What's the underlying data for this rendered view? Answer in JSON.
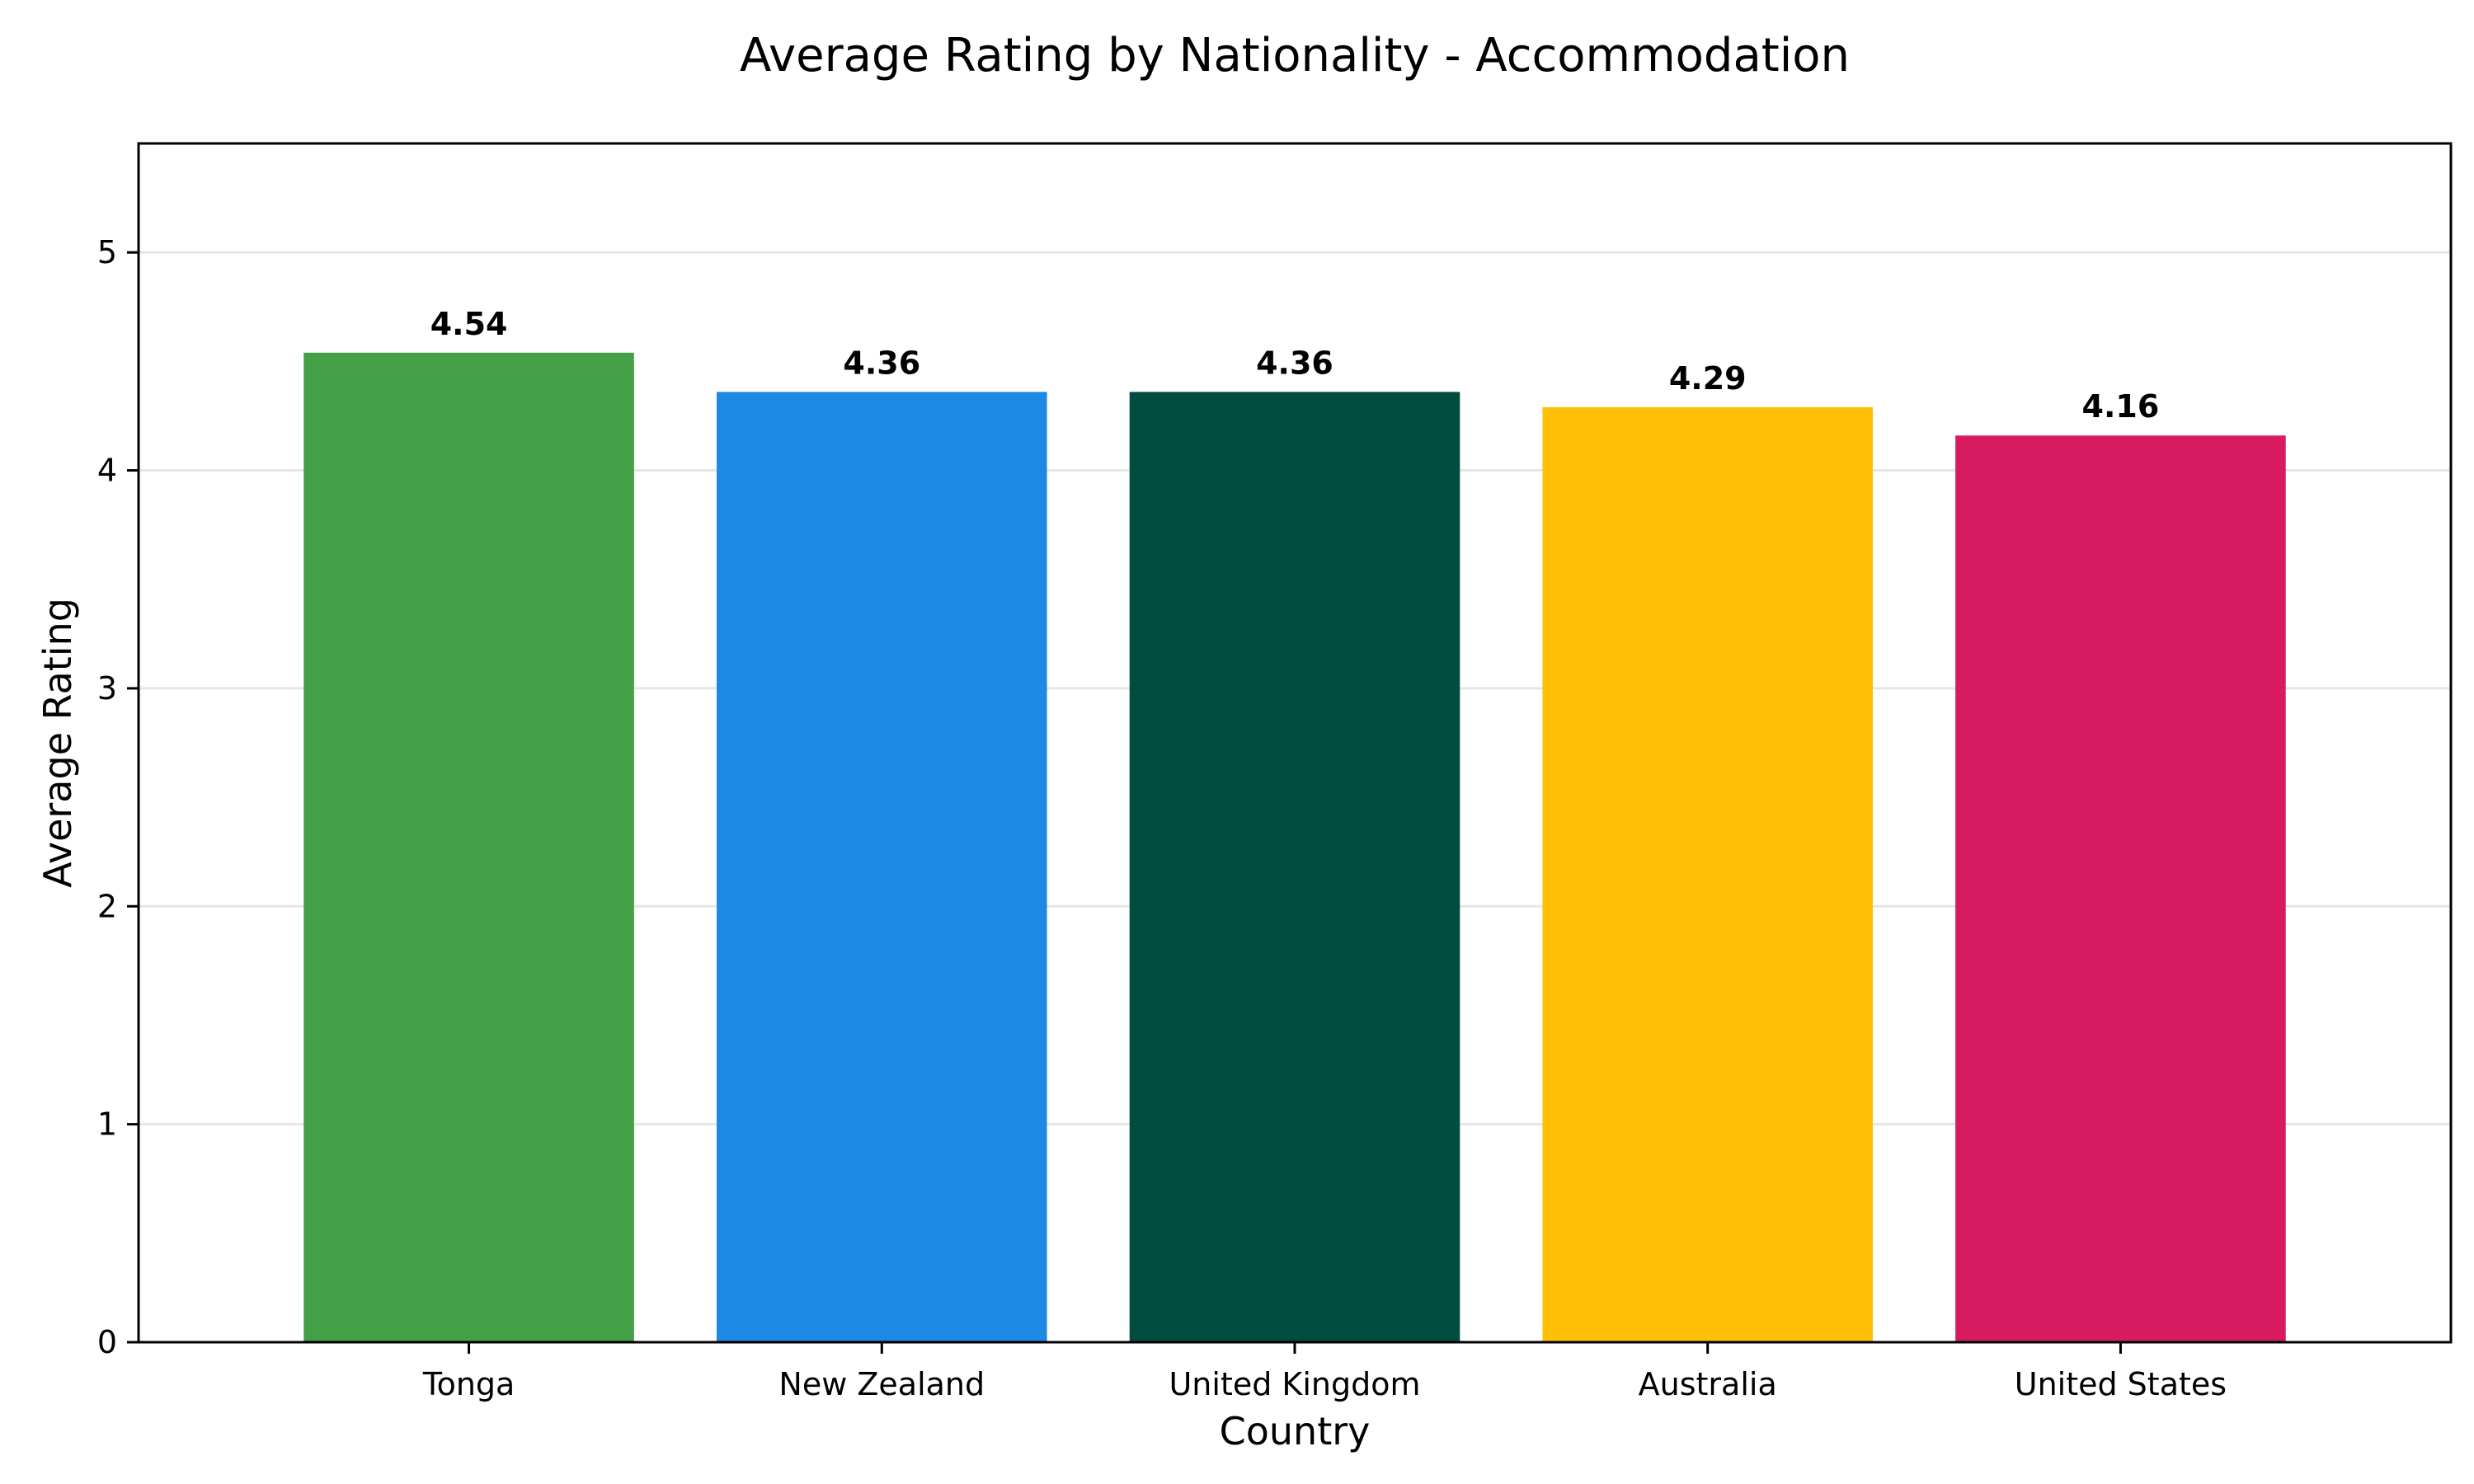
{
  "chart_data": {
    "type": "bar",
    "title": "Average Rating by Nationality - Accommodation",
    "xlabel": "Country",
    "ylabel": "Average Rating",
    "categories": [
      "Tonga",
      "New Zealand",
      "United Kingdom",
      "Australia",
      "United States"
    ],
    "values": [
      4.54,
      4.36,
      4.36,
      4.29,
      4.16
    ],
    "value_labels": [
      "4.54",
      "4.36",
      "4.36",
      "4.29",
      "4.16"
    ],
    "colors": [
      "#43a047",
      "#1e88e5",
      "#004d40",
      "#ffc107",
      "#d81b60"
    ],
    "ylim": [
      0,
      5.5
    ],
    "yticks": [
      0,
      1,
      2,
      3,
      4,
      5
    ],
    "ytick_labels": [
      "0",
      "1",
      "2",
      "3",
      "4",
      "5"
    ],
    "grid": "y",
    "legend": "none"
  }
}
